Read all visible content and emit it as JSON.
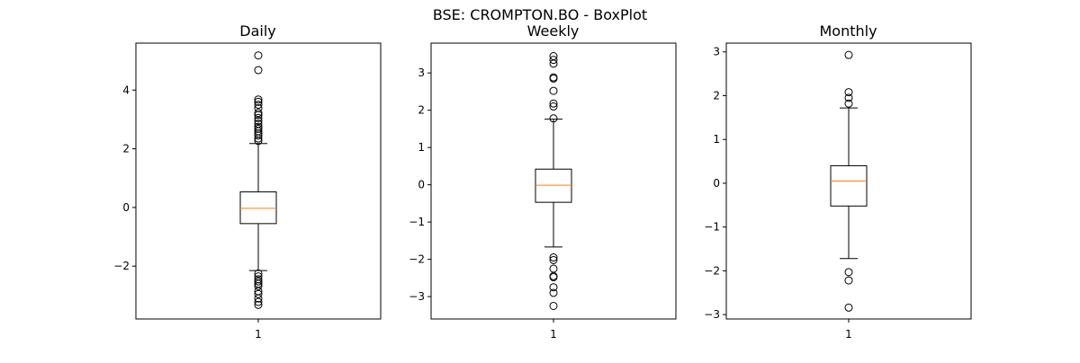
{
  "figure": {
    "suptitle": "BSE: CROMPTON.BO - BoxPlot"
  },
  "colors": {
    "median": "#ff7f0e",
    "stroke": "#000000",
    "background": "#ffffff"
  },
  "chart_data": [
    {
      "type": "box",
      "title": "Daily",
      "xlabel": "",
      "ylabel": "",
      "categories": [
        "1"
      ],
      "ylim": [
        -3.8,
        5.6
      ],
      "yticks": [
        -2,
        0,
        2,
        4
      ],
      "ytick_labels": [
        "−2",
        "0",
        "2",
        "4"
      ],
      "box": {
        "q1": -0.55,
        "median": -0.03,
        "q3": 0.53,
        "whisker_low": -2.15,
        "whisker_high": 2.18
      },
      "outliers": [
        5.18,
        4.68,
        3.68,
        3.6,
        3.5,
        3.38,
        3.22,
        3.15,
        3.05,
        2.95,
        2.85,
        2.75,
        2.68,
        2.6,
        2.52,
        2.45,
        2.35,
        2.27,
        -2.25,
        -2.35,
        -2.45,
        -2.52,
        -2.6,
        -2.68,
        -2.85,
        -2.95,
        -3.1,
        -3.22,
        -3.32
      ]
    },
    {
      "type": "box",
      "title": "Weekly",
      "xlabel": "",
      "ylabel": "",
      "categories": [
        "1"
      ],
      "ylim": [
        -3.6,
        3.8
      ],
      "yticks": [
        -3,
        -2,
        -1,
        0,
        1,
        2,
        3
      ],
      "ytick_labels": [
        "−3",
        "−2",
        "−1",
        "0",
        "1",
        "2",
        "3"
      ],
      "box": {
        "q1": -0.47,
        "median": -0.01,
        "q3": 0.42,
        "whisker_low": -1.67,
        "whisker_high": 1.76
      },
      "outliers": [
        3.45,
        3.35,
        3.25,
        2.88,
        2.85,
        2.52,
        2.18,
        2.1,
        1.78,
        -1.95,
        -2.02,
        -2.25,
        -2.45,
        -2.48,
        -2.75,
        -2.9,
        -3.25
      ]
    },
    {
      "type": "box",
      "title": "Monthly",
      "xlabel": "",
      "ylabel": "",
      "categories": [
        "1"
      ],
      "ylim": [
        -3.1,
        3.2
      ],
      "yticks": [
        -3,
        -2,
        -1,
        0,
        1,
        2,
        3
      ],
      "ytick_labels": [
        "−3",
        "−2",
        "−1",
        "0",
        "1",
        "2",
        "3"
      ],
      "box": {
        "q1": -0.52,
        "median": 0.05,
        "q3": 0.4,
        "whisker_low": -1.72,
        "whisker_high": 1.72
      },
      "outliers": [
        2.93,
        2.08,
        1.95,
        1.82,
        -2.03,
        -2.22,
        -2.84
      ]
    }
  ]
}
